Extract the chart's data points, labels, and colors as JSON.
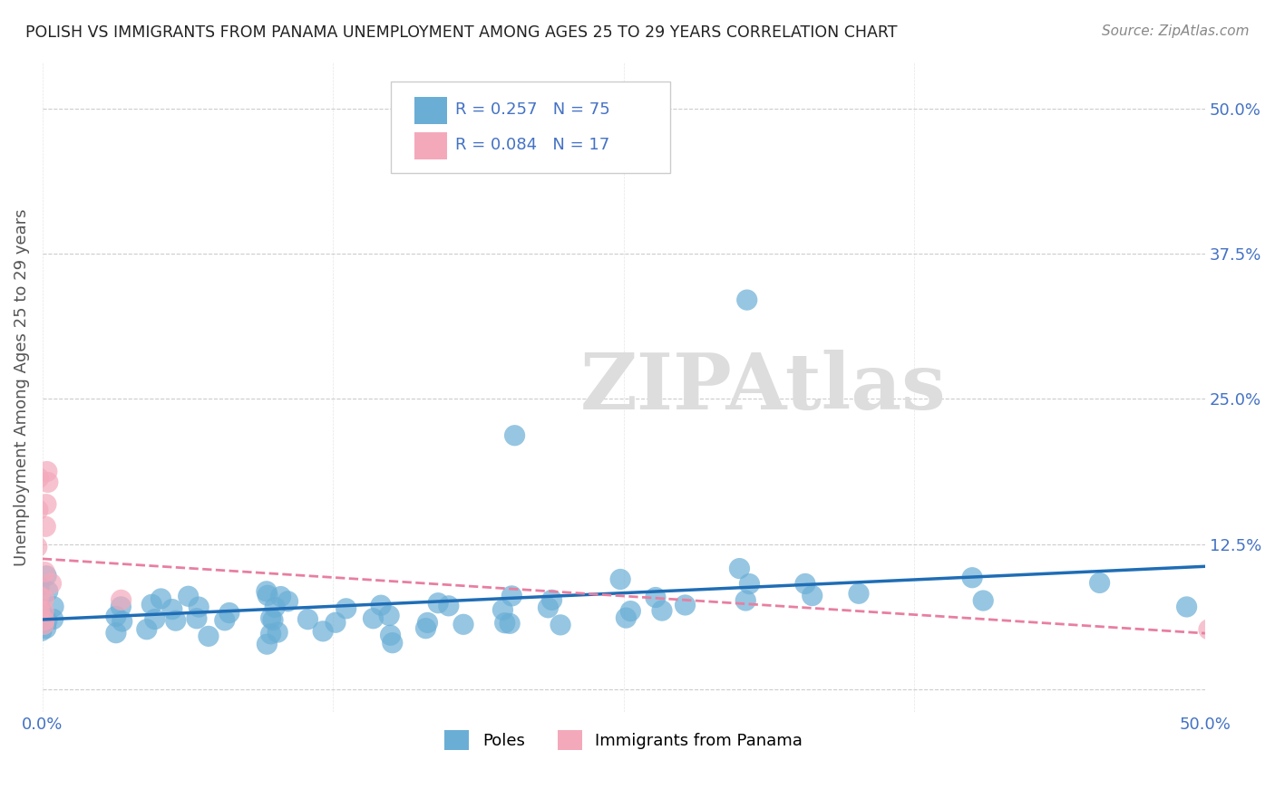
{
  "title": "POLISH VS IMMIGRANTS FROM PANAMA UNEMPLOYMENT AMONG AGES 25 TO 29 YEARS CORRELATION CHART",
  "source": "Source: ZipAtlas.com",
  "ylabel": "Unemployment Among Ages 25 to 29 years",
  "xlabel": "",
  "xlim": [
    0,
    0.5
  ],
  "ylim": [
    -0.02,
    0.54
  ],
  "xticks": [
    0.0,
    0.125,
    0.25,
    0.375,
    0.5
  ],
  "yticks": [
    0.0,
    0.125,
    0.25,
    0.375,
    0.5
  ],
  "xticklabels": [
    "0.0%",
    "",
    "",
    "",
    "50.0%"
  ],
  "yticklabels_right": [
    "",
    "12.5%",
    "25.0%",
    "37.5%",
    "50.0%"
  ],
  "R_blue": 0.257,
  "N_blue": 75,
  "R_pink": 0.084,
  "N_pink": 17,
  "blue_color": "#6aaed6",
  "pink_color": "#f4a9bb",
  "blue_line_color": "#1f6db5",
  "pink_line_color": "#e87fa0",
  "title_color": "#333333",
  "axis_label_color": "#555555",
  "tick_label_color": "#4472c4",
  "grid_color": "#cccccc",
  "watermark": "ZIPAtlas",
  "watermark_color": "#dddddd",
  "legend_R_color": "#4472c4",
  "legend_N_color": "#4472c4",
  "poles_scatter_x": [
    0.0,
    0.0,
    0.0,
    0.0,
    0.0,
    0.0,
    0.0,
    0.0,
    0.0,
    0.0,
    0.033,
    0.033,
    0.033,
    0.04,
    0.05,
    0.05,
    0.05,
    0.05,
    0.06,
    0.06,
    0.067,
    0.067,
    0.067,
    0.067,
    0.08,
    0.08,
    0.1,
    0.1,
    0.1,
    0.1,
    0.1,
    0.1,
    0.1,
    0.1,
    0.1,
    0.1,
    0.12,
    0.12,
    0.13,
    0.13,
    0.14,
    0.15,
    0.15,
    0.15,
    0.15,
    0.167,
    0.167,
    0.167,
    0.18,
    0.18,
    0.2,
    0.2,
    0.2,
    0.2,
    0.2,
    0.22,
    0.22,
    0.22,
    0.25,
    0.25,
    0.25,
    0.267,
    0.267,
    0.28,
    0.3,
    0.3,
    0.3,
    0.3,
    0.33,
    0.33,
    0.35,
    0.4,
    0.4,
    0.45,
    0.5
  ],
  "poles_scatter_y": [
    0.05,
    0.05,
    0.06,
    0.06,
    0.07,
    0.07,
    0.07,
    0.08,
    0.09,
    0.1,
    0.05,
    0.06,
    0.07,
    0.06,
    0.05,
    0.06,
    0.07,
    0.08,
    0.06,
    0.07,
    0.05,
    0.06,
    0.07,
    0.08,
    0.06,
    0.07,
    0.04,
    0.05,
    0.05,
    0.06,
    0.06,
    0.07,
    0.07,
    0.08,
    0.08,
    0.09,
    0.05,
    0.06,
    0.05,
    0.07,
    0.06,
    0.04,
    0.05,
    0.06,
    0.07,
    0.05,
    0.06,
    0.07,
    0.06,
    0.07,
    0.05,
    0.06,
    0.07,
    0.08,
    0.22,
    0.06,
    0.07,
    0.08,
    0.06,
    0.07,
    0.09,
    0.07,
    0.08,
    0.07,
    0.08,
    0.09,
    0.1,
    0.34,
    0.08,
    0.09,
    0.08,
    0.08,
    0.1,
    0.09,
    0.07
  ],
  "panama_scatter_x": [
    0.0,
    0.0,
    0.0,
    0.0,
    0.0,
    0.0,
    0.0,
    0.0,
    0.0,
    0.0,
    0.0,
    0.0,
    0.0,
    0.0,
    0.0,
    0.033,
    0.5
  ],
  "panama_scatter_y": [
    0.05,
    0.06,
    0.07,
    0.07,
    0.08,
    0.08,
    0.09,
    0.1,
    0.12,
    0.14,
    0.15,
    0.16,
    0.17,
    0.18,
    0.19,
    0.08,
    0.05
  ]
}
